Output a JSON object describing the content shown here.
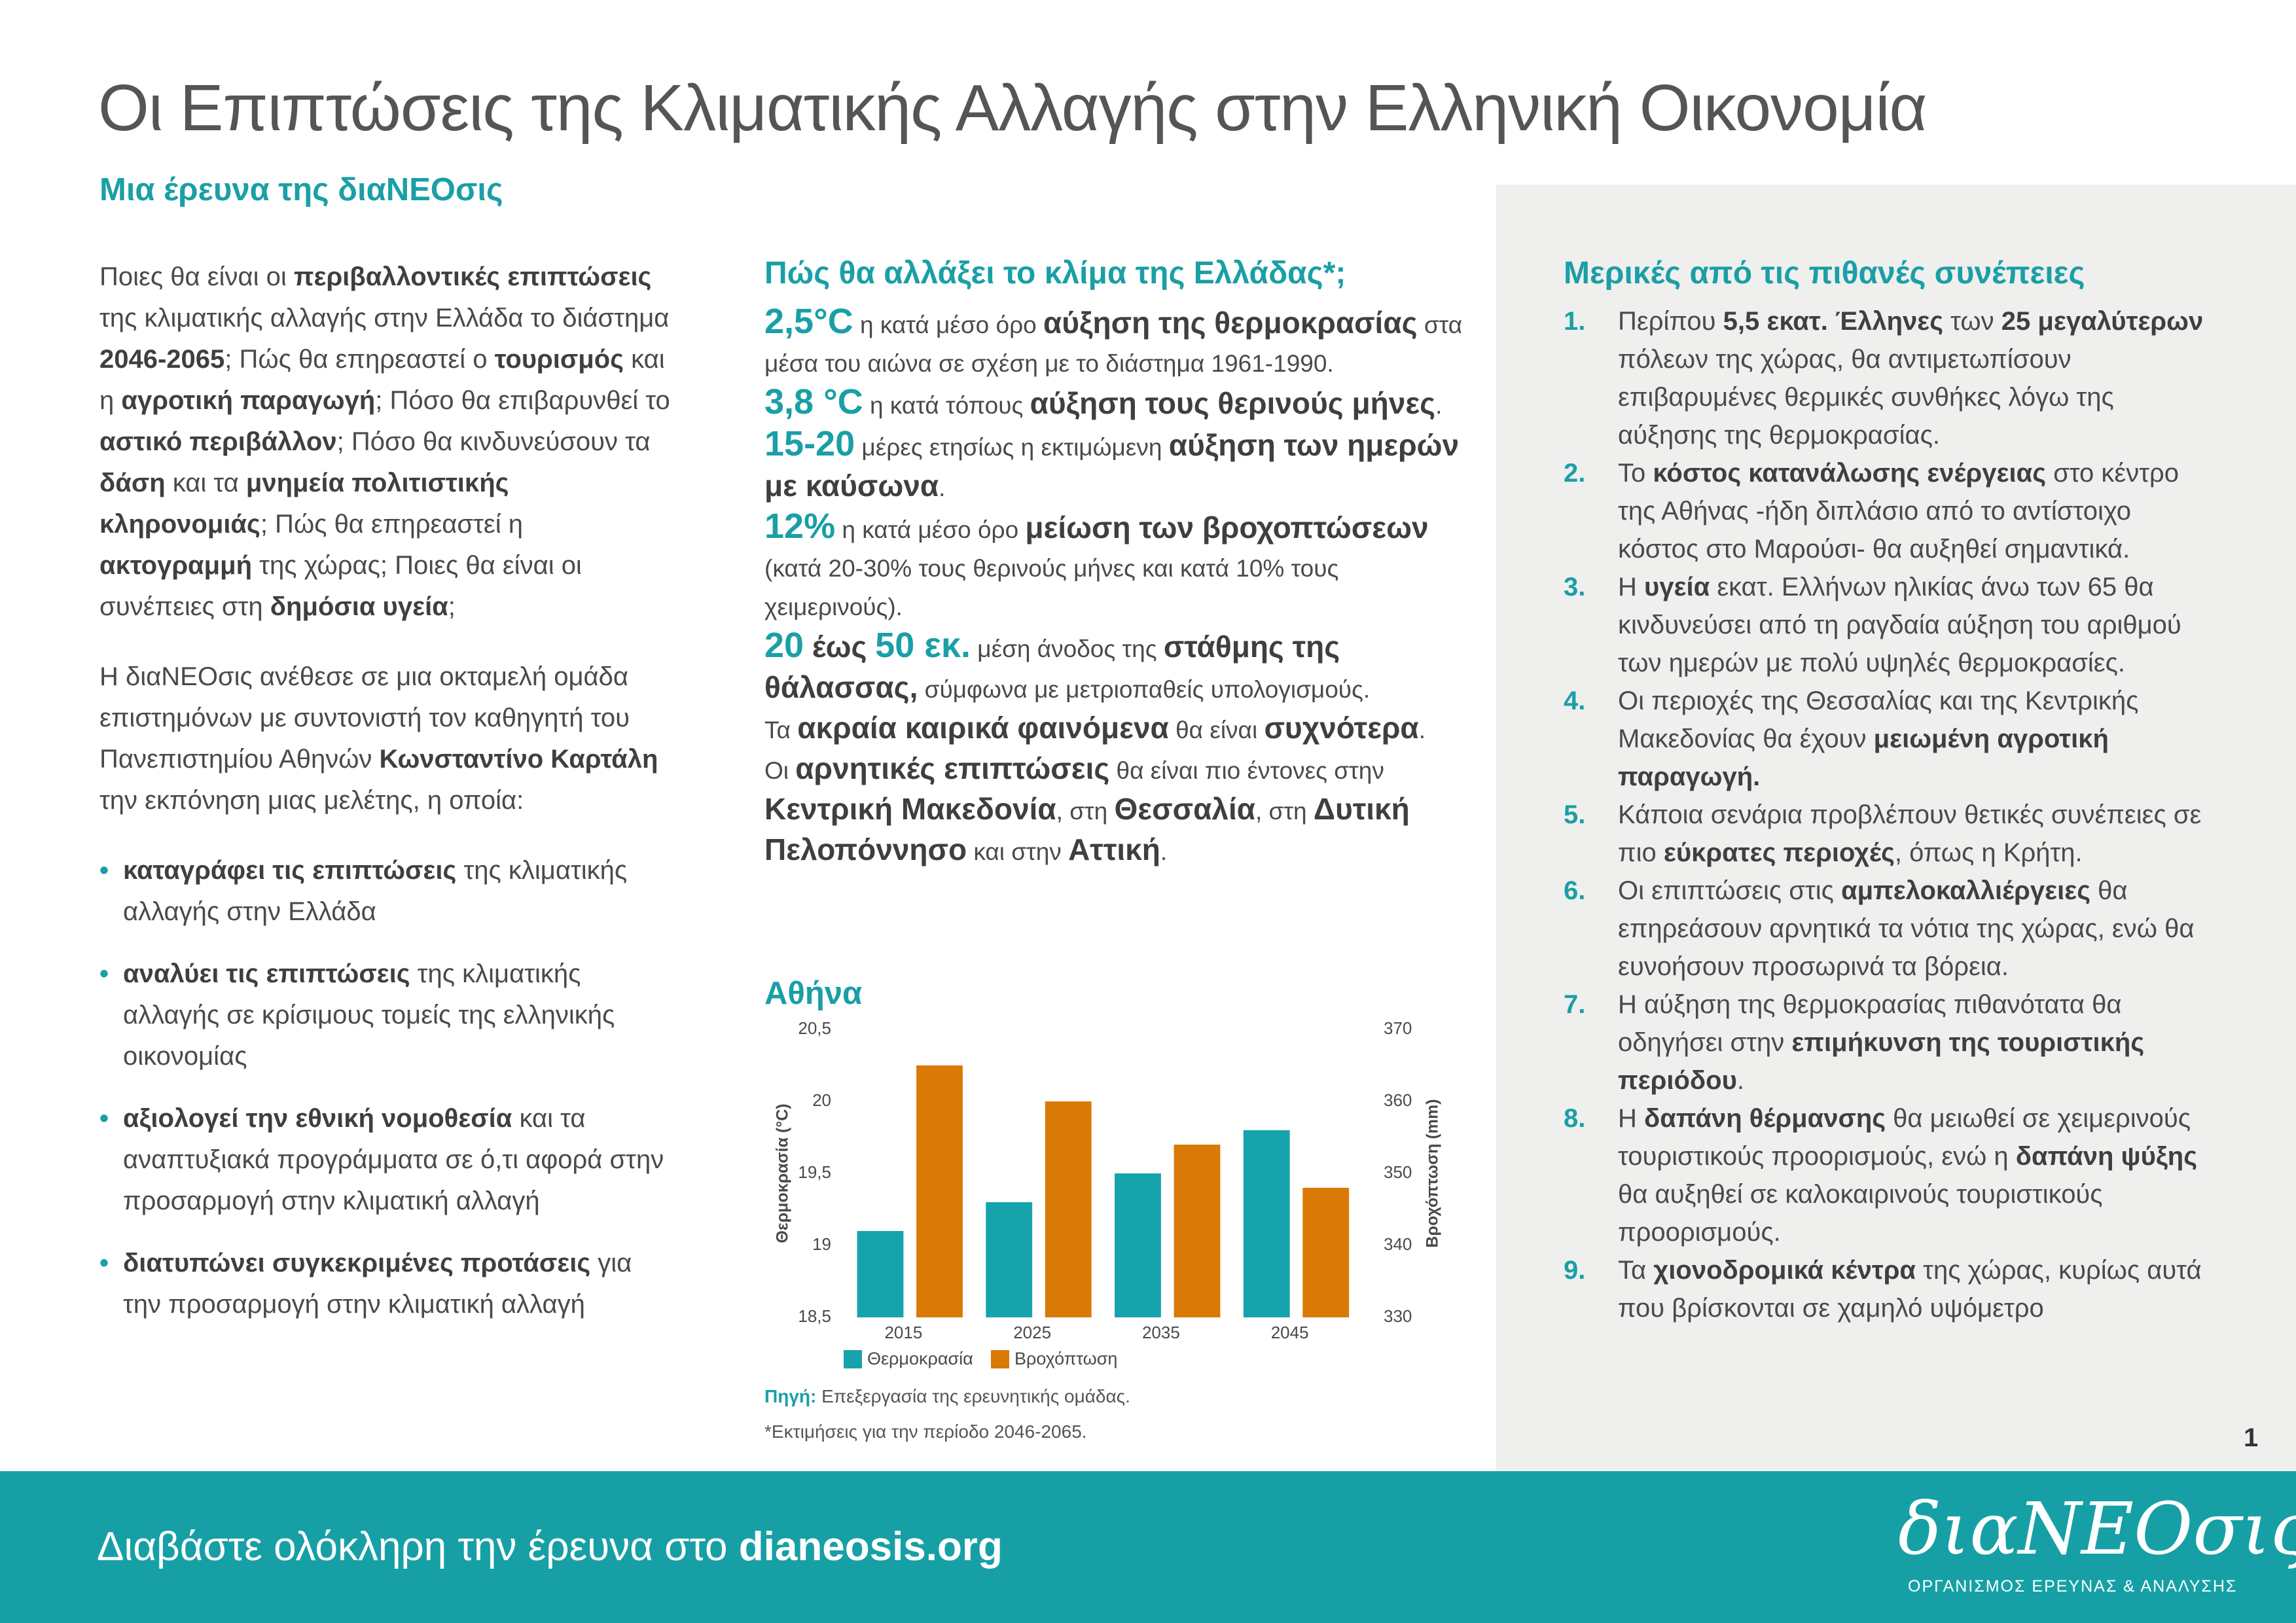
{
  "header": {
    "title": "Οι Επιπτώσεις της Κλιματικής Αλλαγής στην Ελληνική Οικονομία",
    "subtitle": "Μια έρευνα της διαΝΕΟσις"
  },
  "intro": {
    "paragraphs": [
      [
        "Ποιες θα είναι οι ",
        {
          "text": "περιβαλλοντικές επιπτώσεις",
          "style": "bold"
        },
        " της κλιματικής αλλαγής στην Ελλάδα το διάστημα ",
        {
          "text": "2046-2065",
          "style": "bold"
        },
        "; Πώς θα επηρεαστεί ο ",
        {
          "text": "τουρισμός",
          "style": "bold"
        },
        " και η ",
        {
          "text": "αγροτική παραγωγή",
          "style": "bold"
        },
        "; Πόσο θα επιβαρυνθεί το ",
        {
          "text": "αστικό περιβάλλον",
          "style": "bold"
        },
        "; Πόσο θα κινδυνεύσουν τα ",
        {
          "text": "δάση",
          "style": "bold"
        },
        " και τα ",
        {
          "text": "μνημεία πολιτιστικής κληρονομιάς",
          "style": "bold"
        },
        "; Πώς θα επηρεαστεί η ",
        {
          "text": "ακτογραμμή",
          "style": "bold"
        },
        " της χώρας; Ποιες θα είναι οι συνέπειες στη ",
        {
          "text": "δημόσια υγεία",
          "style": "bold"
        },
        ";"
      ],
      [
        "Η διαΝΕΟσις ανέθεσε σε μια οκταμελή ομάδα επιστημόνων με συντονιστή τον καθηγητή του Πανεπιστημίου Αθηνών ",
        {
          "text": "Κωνσταντίνο Καρτάλη",
          "style": "bold"
        },
        " την εκπόνηση μιας μελέτης, η οποία:"
      ]
    ],
    "bullets": [
      [
        {
          "text": "καταγράφει τις επιπτώσεις",
          "style": "bold"
        },
        " της κλιματικής αλλαγής στην Ελλάδα"
      ],
      [
        {
          "text": "αναλύει τις επιπτώσεις",
          "style": "bold"
        },
        " της κλιματικής αλλαγής σε κρίσιμους τομείς της ελληνικής οικονομίας"
      ],
      [
        {
          "text": "αξιολογεί την εθνική νομοθεσία",
          "style": "bold"
        },
        " και τα αναπτυξιακά προγράμματα σε ό,τι αφορά στην προσαρμογή στην κλιματική αλλαγή"
      ],
      [
        {
          "text": "διατυπώνει συγκεκριμένες προτάσεις",
          "style": "bold"
        },
        " για την προσαρμογή στην κλιματική αλλαγή"
      ]
    ]
  },
  "climate": {
    "heading": "Πώς θα αλλάξει το κλίμα της Ελλάδας*;",
    "items": [
      [
        {
          "text": "2,5°C",
          "style": "highlight"
        },
        " η κατά μέσο όρο ",
        {
          "text": "αύξηση της θερμοκρασίας",
          "style": "bold"
        },
        " στα μέσα του αιώνα σε σχέση με το διάστημα 1961-1990."
      ],
      [
        {
          "text": "3,8 °C",
          "style": "highlight"
        },
        " η κατά τόπους ",
        {
          "text": "αύξηση τους θερινούς μήνες",
          "style": "bold"
        },
        "."
      ],
      [
        {
          "text": "15-20",
          "style": "highlight"
        },
        " μέρες ετησίως η εκτιμώμενη ",
        {
          "text": "αύξηση των ημερών με καύσωνα",
          "style": "bold"
        },
        "."
      ],
      [
        {
          "text": "12%",
          "style": "highlight"
        },
        " η κατά μέσο όρο ",
        {
          "text": "μείωση των βροχοπτώσεων",
          "style": "bold"
        },
        " (κατά 20-30% τους θερινούς μήνες και κατά 10% τους χειμερινούς)."
      ],
      [
        {
          "text": "20",
          "style": "highlight"
        },
        {
          "text": " έως ",
          "style": "bold"
        },
        {
          "text": "50 εκ.",
          "style": "highlight"
        },
        " μέση άνοδος της ",
        {
          "text": "στάθμης της θάλασσας,",
          "style": "bold"
        },
        " σύμφωνα με μετριοπαθείς υπολογισμούς."
      ],
      [
        "Τα ",
        {
          "text": "ακραία καιρικά φαινόμενα",
          "style": "bold"
        },
        " θα είναι ",
        {
          "text": "συχνότερα",
          "style": "bold"
        },
        "."
      ],
      [
        "Οι ",
        {
          "text": "αρνητικές επιπτώσεις",
          "style": "bold"
        },
        " θα είναι πιο έντονες στην ",
        {
          "text": "Κεντρική Μακεδονία",
          "style": "bold"
        },
        ", στη ",
        {
          "text": "Θεσσαλία",
          "style": "bold"
        },
        ", στη ",
        {
          "text": "Δυτική Πελοπόννησο",
          "style": "bold"
        },
        " και στην ",
        {
          "text": "Αττική",
          "style": "bold"
        },
        "."
      ]
    ]
  },
  "chart_data": {
    "type": "bar",
    "title": "Αθήνα",
    "categories": [
      "2015",
      "2025",
      "2035",
      "2045"
    ],
    "series": [
      {
        "name": "Θερμοκρασία",
        "color": "#17a3ab",
        "values": [
          19.1,
          19.3,
          19.5,
          19.8
        ]
      },
      {
        "name": "Βροχόπτωση",
        "color": "#d97a06",
        "values": [
          365,
          360,
          354,
          348
        ],
        "axis": "y2"
      }
    ],
    "ylabel": "Θερμοκρασία (°C)",
    "y2label": "Βροχόπτωση (mm)",
    "ylim": [
      18.5,
      20.5
    ],
    "yticks": [
      {
        "value": 18.5,
        "label": "18,5"
      },
      19,
      {
        "value": 19.5,
        "label": "19,5"
      },
      20,
      {
        "value": 20.5,
        "label": "20,5"
      }
    ],
    "y2lim": [
      330,
      370
    ],
    "y2ticks": [
      330,
      340,
      350,
      360,
      370
    ],
    "grid": false,
    "legend": "bottom"
  },
  "chart_notes": {
    "source": [
      {
        "text": "Πηγή:",
        "style": "bold"
      },
      " Επεξεργασία της ερευνητικής ομάδας."
    ],
    "footnote": "*Εκτιμήσεις για την περίοδο 2046-2065."
  },
  "consequences": {
    "heading": "Μερικές από τις πιθανές συνέπειες",
    "items": [
      {
        "number": "1.",
        "text": [
          "Περίπου ",
          {
            "text": "5,5 εκατ. Έλληνες",
            "style": "bold"
          },
          " των ",
          {
            "text": "25 μεγαλύτερων",
            "style": "bold"
          },
          " πόλεων της χώρας, θα αντιμετωπίσουν επιβαρυμένες θερμικές συνθήκες λόγω της αύξησης της θερμοκρασίας."
        ]
      },
      {
        "number": "2.",
        "text": [
          "Το ",
          {
            "text": "κόστος κατανάλωσης ενέργειας",
            "style": "bold"
          },
          " στο κέντρο της Αθήνας -ήδη διπλάσιο από το αντίστοιχο κόστος στο Μαρούσι- θα αυξηθεί σημαντικά."
        ]
      },
      {
        "number": "3.",
        "text": [
          "Η ",
          {
            "text": "υγεία",
            "style": "bold"
          },
          " εκατ. Ελλήνων ηλικίας άνω των 65 θα κινδυνεύσει από τη ραγδαία αύξηση του αριθμού των ημερών με πολύ υψηλές θερμοκρασίες."
        ]
      },
      {
        "number": "4.",
        "text": [
          "Οι περιοχές της Θεσσαλίας και της Κεντρικής Μακεδονίας θα έχουν ",
          {
            "text": "μειωμένη αγροτική παραγωγή.",
            "style": "bold"
          }
        ]
      },
      {
        "number": "5.",
        "text": [
          "Κάποια σενάρια προβλέπουν θετικές συνέπειες σε πιο ",
          {
            "text": "εύκρατες περιοχές",
            "style": "bold"
          },
          ", όπως η Κρήτη."
        ]
      },
      {
        "number": "6.",
        "text": [
          "Οι επιπτώσεις στις ",
          {
            "text": "αμπελοκαλλιέργειες",
            "style": "bold"
          },
          " θα επηρεάσουν αρνητικά τα νότια της χώρας, ενώ θα ευνοήσουν προσωρινά τα βόρεια."
        ]
      },
      {
        "number": "7.",
        "text": [
          "Η αύξηση της θερμοκρασίας πιθανότατα θα οδηγήσει στην ",
          {
            "text": "επιμήκυνση της τουριστικής περιόδου",
            "style": "bold"
          },
          "."
        ]
      },
      {
        "number": "8.",
        "text": [
          "Η ",
          {
            "text": "δαπάνη θέρμανσης",
            "style": "bold"
          },
          " θα μειωθεί σε χειμερινούς τουριστικούς προορισμούς, ενώ η ",
          {
            "text": "δαπάνη ψύξης",
            "style": "bold"
          },
          " θα αυξηθεί σε καλοκαιρινούς τουριστικούς προορισμούς."
        ]
      },
      {
        "number": "9.",
        "text": [
          "Τα ",
          {
            "text": "χιονοδρομικά κέντρα",
            "style": "bold"
          },
          " της χώρας, κυρίως αυτά που βρίσκονται σε χαμηλό υψόμετρο"
        ]
      }
    ]
  },
  "footer": {
    "text": [
      "Διαβάστε ολόκληρη την έρευνα στο ",
      {
        "text": "dianeosis.org",
        "style": "bold"
      }
    ],
    "logo": "διαΝΕΟσις",
    "tagline": "ΟΡΓΑΝΙΣΜΟΣ ΕΡΕΥΝΑΣ & ΑΝΑΛΥΣΗΣ",
    "page_number": 1
  }
}
